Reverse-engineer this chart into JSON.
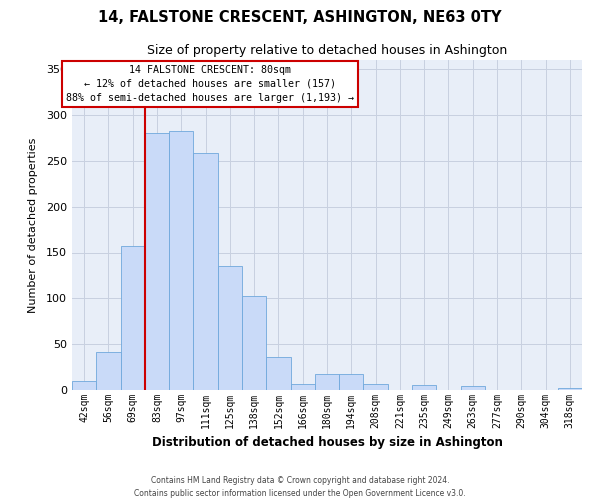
{
  "title": "14, FALSTONE CRESCENT, ASHINGTON, NE63 0TY",
  "subtitle": "Size of property relative to detached houses in Ashington",
  "xlabel": "Distribution of detached houses by size in Ashington",
  "ylabel": "Number of detached properties",
  "bar_labels": [
    "42sqm",
    "56sqm",
    "69sqm",
    "83sqm",
    "97sqm",
    "111sqm",
    "125sqm",
    "138sqm",
    "152sqm",
    "166sqm",
    "180sqm",
    "194sqm",
    "208sqm",
    "221sqm",
    "235sqm",
    "249sqm",
    "263sqm",
    "277sqm",
    "290sqm",
    "304sqm",
    "318sqm"
  ],
  "bar_values": [
    10,
    42,
    157,
    280,
    283,
    258,
    135,
    103,
    36,
    7,
    17,
    18,
    7,
    0,
    5,
    0,
    4,
    0,
    0,
    0,
    2
  ],
  "bar_color": "#c9daf8",
  "bar_edge_color": "#6fa8dc",
  "vline_x_index": 3,
  "vline_color": "#cc0000",
  "ylim": [
    0,
    360
  ],
  "yticks": [
    0,
    50,
    100,
    150,
    200,
    250,
    300,
    350
  ],
  "annotation_title": "14 FALSTONE CRESCENT: 80sqm",
  "annotation_line1": "← 12% of detached houses are smaller (157)",
  "annotation_line2": "88% of semi-detached houses are larger (1,193) →",
  "footer_line1": "Contains HM Land Registry data © Crown copyright and database right 2024.",
  "footer_line2": "Contains public sector information licensed under the Open Government Licence v3.0.",
  "background_color": "#ffffff",
  "plot_bg_color": "#e8eef8",
  "grid_color": "#c8d0e0"
}
